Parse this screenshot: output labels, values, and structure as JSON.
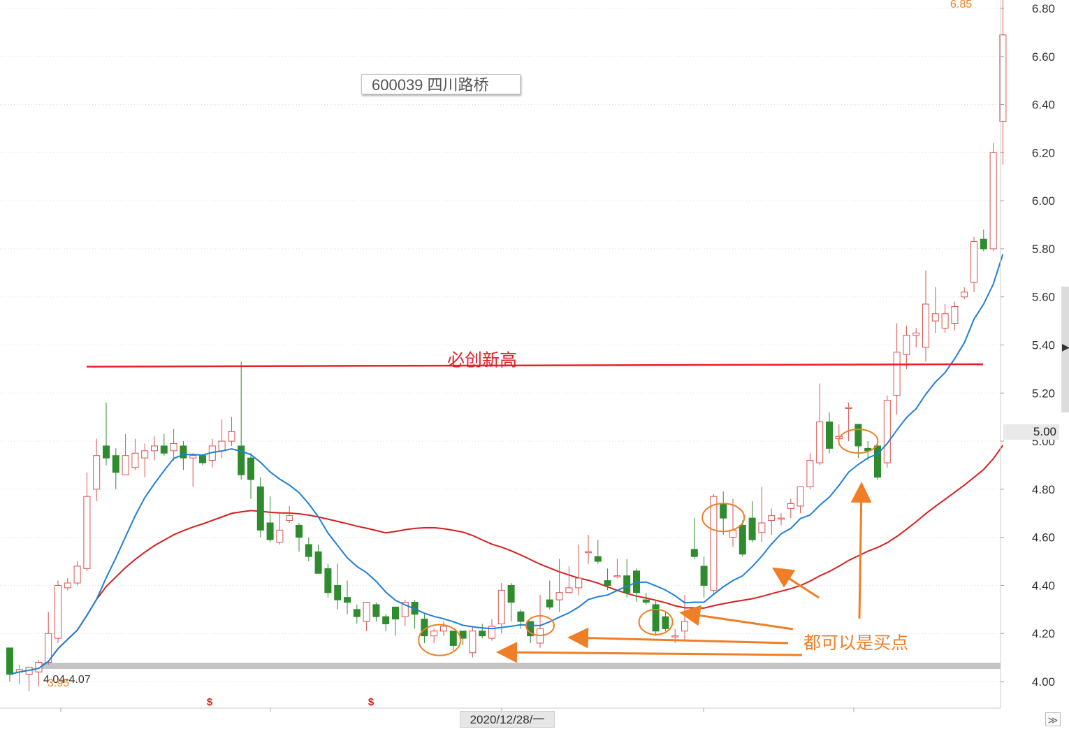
{
  "header": {
    "stock_title": "600039 四川路桥"
  },
  "price_axis": {
    "ticks": [
      "6.80",
      "6.60",
      "6.40",
      "6.20",
      "6.00",
      "5.80",
      "5.60",
      "5.40",
      "5.20",
      "5.00",
      "4.80",
      "4.60",
      "4.40",
      "4.20",
      "4.00"
    ],
    "current_price": "5.00"
  },
  "x_axis": {
    "cursor_date": "2020/12/28/一"
  },
  "annotations": {
    "resistance_label": "必创新高",
    "buy_label": "都可以是买点",
    "high_label": "6.85",
    "low_label": "3.95",
    "support_range_label": "4.04-4.07",
    "event_markers": [
      "$",
      "$"
    ]
  },
  "colors": {
    "up": "#d9534f",
    "down": "#2e8b2e",
    "ma_short": "#1e7fd8",
    "ma_long": "#d81e1e",
    "annotation": "#f07e26",
    "resistance": "#e8202a"
  },
  "chart_data": {
    "type": "candlestick",
    "title": "600039 四川路桥",
    "ylim": [
      3.9,
      6.85
    ],
    "candles": [
      [
        4.14,
        4.03,
        4.14,
        4.0
      ],
      [
        4.04,
        4.05,
        4.07,
        3.99
      ],
      [
        4.03,
        4.06,
        4.06,
        3.96
      ],
      [
        4.04,
        4.08,
        4.09,
        3.98
      ],
      [
        4.08,
        4.2,
        4.29,
        4.07
      ],
      [
        4.18,
        4.4,
        4.42,
        4.16
      ],
      [
        4.39,
        4.41,
        4.43,
        4.38
      ],
      [
        4.41,
        4.48,
        4.5,
        4.4
      ],
      [
        4.47,
        4.77,
        4.87,
        4.46
      ],
      [
        4.8,
        4.94,
        5.01,
        4.75
      ],
      [
        4.98,
        4.93,
        5.16,
        4.9
      ],
      [
        4.94,
        4.87,
        4.97,
        4.8
      ],
      [
        4.86,
        4.94,
        5.03,
        4.86
      ],
      [
        4.89,
        4.95,
        5.01,
        4.88
      ],
      [
        4.93,
        4.96,
        4.99,
        4.85
      ],
      [
        4.96,
        4.98,
        5.02,
        4.92
      ],
      [
        4.98,
        4.95,
        5.03,
        4.94
      ],
      [
        4.96,
        4.99,
        5.05,
        4.92
      ],
      [
        4.98,
        4.93,
        5.0,
        4.88
      ],
      [
        4.93,
        4.94,
        4.95,
        4.81
      ],
      [
        4.94,
        4.91,
        4.93,
        4.9
      ],
      [
        4.92,
        4.98,
        5.01,
        4.89
      ],
      [
        4.96,
        5.0,
        5.09,
        4.93
      ],
      [
        5.0,
        5.04,
        5.1,
        4.98
      ],
      [
        4.98,
        4.86,
        5.33,
        4.84
      ],
      [
        4.93,
        4.84,
        4.95,
        4.76
      ],
      [
        4.81,
        4.63,
        4.85,
        4.6
      ],
      [
        4.66,
        4.59,
        4.77,
        4.58
      ],
      [
        4.58,
        4.63,
        4.7,
        4.57
      ],
      [
        4.67,
        4.69,
        4.73,
        4.66
      ],
      [
        4.65,
        4.6,
        4.66,
        4.54
      ],
      [
        4.57,
        4.52,
        4.6,
        4.5
      ],
      [
        4.54,
        4.45,
        4.57,
        4.45
      ],
      [
        4.47,
        4.37,
        4.49,
        4.35
      ],
      [
        4.4,
        4.34,
        4.49,
        4.3
      ],
      [
        4.35,
        4.33,
        4.42,
        4.28
      ],
      [
        4.3,
        4.27,
        4.32,
        4.24
      ],
      [
        4.25,
        4.33,
        4.33,
        4.21
      ],
      [
        4.32,
        4.27,
        4.33,
        4.25
      ],
      [
        4.27,
        4.24,
        4.28,
        4.21
      ],
      [
        4.31,
        4.26,
        4.31,
        4.19
      ],
      [
        4.27,
        4.33,
        4.34,
        4.23
      ],
      [
        4.33,
        4.28,
        4.34,
        4.22
      ],
      [
        4.26,
        4.19,
        4.28,
        4.16
      ],
      [
        4.19,
        4.21,
        4.22,
        4.16
      ],
      [
        4.21,
        4.23,
        4.25,
        4.19
      ],
      [
        4.21,
        4.15,
        4.21,
        4.13
      ],
      [
        4.21,
        4.18,
        4.21,
        4.15
      ],
      [
        4.12,
        4.21,
        4.23,
        4.1
      ],
      [
        4.21,
        4.19,
        4.24,
        4.18
      ],
      [
        4.18,
        4.23,
        4.26,
        4.17
      ],
      [
        4.24,
        4.38,
        4.41,
        4.2
      ],
      [
        4.4,
        4.33,
        4.41,
        4.25
      ],
      [
        4.29,
        4.25,
        4.3,
        4.22
      ],
      [
        4.25,
        4.19,
        4.25,
        4.16
      ],
      [
        4.16,
        4.22,
        4.36,
        4.14
      ],
      [
        4.34,
        4.31,
        4.42,
        4.3
      ],
      [
        4.34,
        4.37,
        4.51,
        4.29
      ],
      [
        4.37,
        4.39,
        4.48,
        4.38
      ],
      [
        4.39,
        4.43,
        4.57,
        4.36
      ],
      [
        4.54,
        4.54,
        4.61,
        4.49
      ],
      [
        4.52,
        4.5,
        4.59,
        4.49
      ],
      [
        4.42,
        4.4,
        4.47,
        4.38
      ],
      [
        4.44,
        4.44,
        4.51,
        4.43
      ],
      [
        4.44,
        4.37,
        4.51,
        4.35
      ],
      [
        4.46,
        4.37,
        4.47,
        4.33
      ],
      [
        4.34,
        4.33,
        4.37,
        4.32
      ],
      [
        4.32,
        4.21,
        4.34,
        4.19
      ],
      [
        4.27,
        4.22,
        4.29,
        4.21
      ],
      [
        4.19,
        4.19,
        4.22,
        4.16
      ],
      [
        4.21,
        4.25,
        4.36,
        4.17
      ],
      [
        4.55,
        4.52,
        4.68,
        4.51
      ],
      [
        4.48,
        4.4,
        4.52,
        4.35
      ],
      [
        4.38,
        4.77,
        4.78,
        4.36
      ],
      [
        4.74,
        4.68,
        4.79,
        4.61
      ],
      [
        4.6,
        4.63,
        4.76,
        4.56
      ],
      [
        4.65,
        4.53,
        4.67,
        4.52
      ],
      [
        4.68,
        4.59,
        4.75,
        4.58
      ],
      [
        4.62,
        4.66,
        4.81,
        4.58
      ],
      [
        4.67,
        4.69,
        4.72,
        4.61
      ],
      [
        4.68,
        4.68,
        4.7,
        4.65
      ],
      [
        4.72,
        4.74,
        4.76,
        4.68
      ],
      [
        4.73,
        4.81,
        4.81,
        4.7
      ],
      [
        4.81,
        4.92,
        4.95,
        4.8
      ],
      [
        4.91,
        5.08,
        5.24,
        4.9
      ],
      [
        5.08,
        4.97,
        5.12,
        4.95
      ],
      [
        5.01,
        5.02,
        5.07,
        4.99
      ],
      [
        5.14,
        5.14,
        5.16,
        5.0
      ],
      [
        5.07,
        4.98,
        5.07,
        4.93
      ],
      [
        4.97,
        4.96,
        5.0,
        4.92
      ],
      [
        4.98,
        4.85,
        5.0,
        4.84
      ],
      [
        4.91,
        5.17,
        5.19,
        4.89
      ],
      [
        5.19,
        5.37,
        5.49,
        5.11
      ],
      [
        5.36,
        5.44,
        5.48,
        5.3
      ],
      [
        5.44,
        5.45,
        5.47,
        5.39
      ],
      [
        5.39,
        5.57,
        5.71,
        5.33
      ],
      [
        5.5,
        5.53,
        5.64,
        5.45
      ],
      [
        5.47,
        5.53,
        5.57,
        5.45
      ],
      [
        5.49,
        5.56,
        5.58,
        5.46
      ],
      [
        5.6,
        5.62,
        5.64,
        5.59
      ],
      [
        5.66,
        5.83,
        5.85,
        5.62
      ],
      [
        5.84,
        5.8,
        5.88,
        5.79
      ],
      [
        5.8,
        6.2,
        6.24,
        5.79
      ],
      [
        6.33,
        6.69,
        6.85,
        6.15
      ]
    ],
    "ma_short_label": "",
    "ma_long_label": ""
  }
}
